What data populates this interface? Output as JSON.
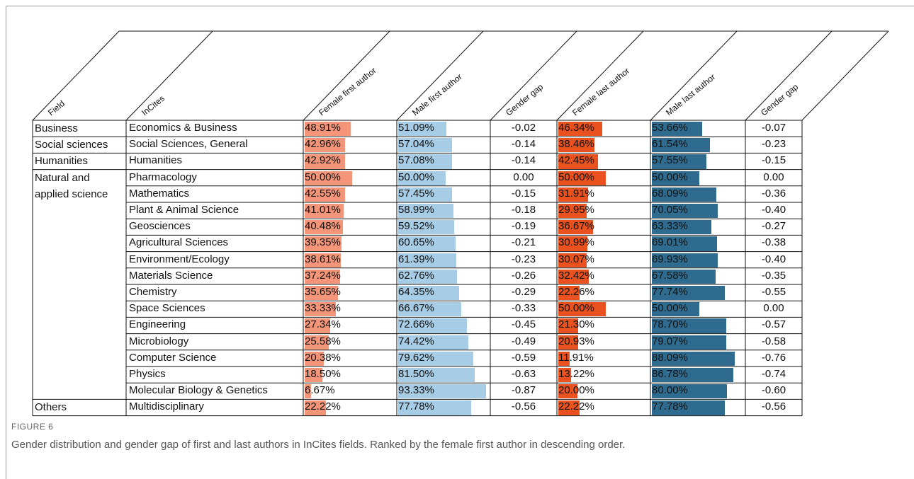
{
  "table": {
    "headers": [
      "Field",
      "InCites",
      "Female first author",
      "Male first author",
      "Gender gap",
      "Female last author",
      "Male last author",
      "Gender gap"
    ],
    "colors": [
      "#f4957a",
      "#a7cde6",
      "#e9521f",
      "#2f6b8f"
    ],
    "groups": [
      {
        "field": "Business",
        "rows": [
          {
            "incites": "Economics & Business",
            "values": [
              48.91,
              51.09,
              -0.02,
              46.34,
              53.66,
              -0.07
            ],
            "value_labels": [
              "48.91%",
              "51.09%",
              "-0.02",
              "46.34%",
              "53.66%",
              "-0.07"
            ]
          }
        ]
      },
      {
        "field": "Social sciences",
        "rows": [
          {
            "incites": "Social Sciences, General",
            "values": [
              42.96,
              57.04,
              -0.14,
              38.46,
              61.54,
              -0.23
            ],
            "value_labels": [
              "42.96%",
              "57.04%",
              "-0.14",
              "38.46%",
              "61.54%",
              "-0.23"
            ]
          }
        ]
      },
      {
        "field": "Humanities",
        "rows": [
          {
            "incites": "Humanities",
            "values": [
              42.92,
              57.08,
              -0.14,
              42.45,
              57.55,
              -0.15
            ],
            "value_labels": [
              "42.92%",
              "57.08%",
              "-0.14",
              "42.45%",
              "57.55%",
              "-0.15"
            ]
          }
        ]
      },
      {
        "field": "Natural and applied science",
        "rows": [
          {
            "incites": "Pharmacology",
            "values": [
              50.0,
              50.0,
              0.0,
              50.0,
              50.0,
              0.0
            ],
            "value_labels": [
              "50.00%",
              "50.00%",
              "0.00",
              "50.00%",
              "50.00%",
              "0.00"
            ]
          },
          {
            "incites": "Mathematics",
            "values": [
              42.55,
              57.45,
              -0.15,
              31.91,
              68.09,
              -0.36
            ],
            "value_labels": [
              "42.55%",
              "57.45%",
              "-0.15",
              "31.91%",
              "68.09%",
              "-0.36"
            ]
          },
          {
            "incites": "Plant & Animal Science",
            "values": [
              41.01,
              58.99,
              -0.18,
              29.95,
              70.05,
              -0.4
            ],
            "value_labels": [
              "41.01%",
              "58.99%",
              "-0.18",
              "29.95%",
              "70.05%",
              "-0.40"
            ]
          },
          {
            "incites": "Geosciences",
            "values": [
              40.48,
              59.52,
              -0.19,
              36.67,
              63.33,
              -0.27
            ],
            "value_labels": [
              "40.48%",
              "59.52%",
              "-0.19",
              "36.67%",
              "63.33%",
              "-0.27"
            ]
          },
          {
            "incites": "Agricultural Sciences",
            "values": [
              39.35,
              60.65,
              -0.21,
              30.99,
              69.01,
              -0.38
            ],
            "value_labels": [
              "39.35%",
              "60.65%",
              "-0.21",
              "30.99%",
              "69.01%",
              "-0.38"
            ]
          },
          {
            "incites": "Environment/Ecology",
            "values": [
              38.61,
              61.39,
              -0.23,
              30.07,
              69.93,
              -0.4
            ],
            "value_labels": [
              "38.61%",
              "61.39%",
              "-0.23",
              "30.07%",
              "69.93%",
              "-0.40"
            ]
          },
          {
            "incites": "Materials Science",
            "values": [
              37.24,
              62.76,
              -0.26,
              32.42,
              67.58,
              -0.35
            ],
            "value_labels": [
              "37.24%",
              "62.76%",
              "-0.26",
              "32.42%",
              "67.58%",
              "-0.35"
            ]
          },
          {
            "incites": "Chemistry",
            "values": [
              35.65,
              64.35,
              -0.29,
              22.26,
              77.74,
              -0.55
            ],
            "value_labels": [
              "35.65%",
              "64.35%",
              "-0.29",
              "22.26%",
              "77.74%",
              "-0.55"
            ]
          },
          {
            "incites": "Space Sciences",
            "values": [
              33.33,
              66.67,
              -0.33,
              50.0,
              50.0,
              0.0
            ],
            "value_labels": [
              "33.33%",
              "66.67%",
              "-0.33",
              "50.00%",
              "50.00%",
              "0.00"
            ]
          },
          {
            "incites": "Engineering",
            "values": [
              27.34,
              72.66,
              -0.45,
              21.3,
              78.7,
              -0.57
            ],
            "value_labels": [
              "27.34%",
              "72.66%",
              "-0.45",
              "21.30%",
              "78.70%",
              "-0.57"
            ]
          },
          {
            "incites": "Microbiology",
            "values": [
              25.58,
              74.42,
              -0.49,
              20.93,
              79.07,
              -0.58
            ],
            "value_labels": [
              "25.58%",
              "74.42%",
              "-0.49",
              "20.93%",
              "79.07%",
              "-0.58"
            ]
          },
          {
            "incites": "Computer Science",
            "values": [
              20.38,
              79.62,
              -0.59,
              11.91,
              88.09,
              -0.76
            ],
            "value_labels": [
              "20.38%",
              "79.62%",
              "-0.59",
              "11.91%",
              "88.09%",
              "-0.76"
            ]
          },
          {
            "incites": "Physics",
            "values": [
              18.5,
              81.5,
              -0.63,
              13.22,
              86.78,
              -0.74
            ],
            "value_labels": [
              "18.50%",
              "81.50%",
              "-0.63",
              "13.22%",
              "86.78%",
              "-0.74"
            ]
          },
          {
            "incites": "Molecular Biology & Genetics",
            "values": [
              6.67,
              93.33,
              -0.87,
              20.0,
              80.0,
              -0.6
            ],
            "value_labels": [
              "6.67%",
              "93.33%",
              "-0.87",
              "20.00%",
              "80.00%",
              "-0.60"
            ]
          }
        ]
      },
      {
        "field": "Others",
        "rows": [
          {
            "incites": "Multidisciplinary",
            "values": [
              22.22,
              77.78,
              -0.56,
              22.22,
              77.78,
              -0.56
            ],
            "value_labels": [
              "22.22%",
              "77.78%",
              "-0.56",
              "22.22%",
              "77.78%",
              "-0.56"
            ]
          }
        ]
      }
    ]
  },
  "figure_label": "FIGURE 6",
  "caption": "Gender distribution and gender gap of first and last authors in InCites fields. Ranked by the female first author in descending order."
}
